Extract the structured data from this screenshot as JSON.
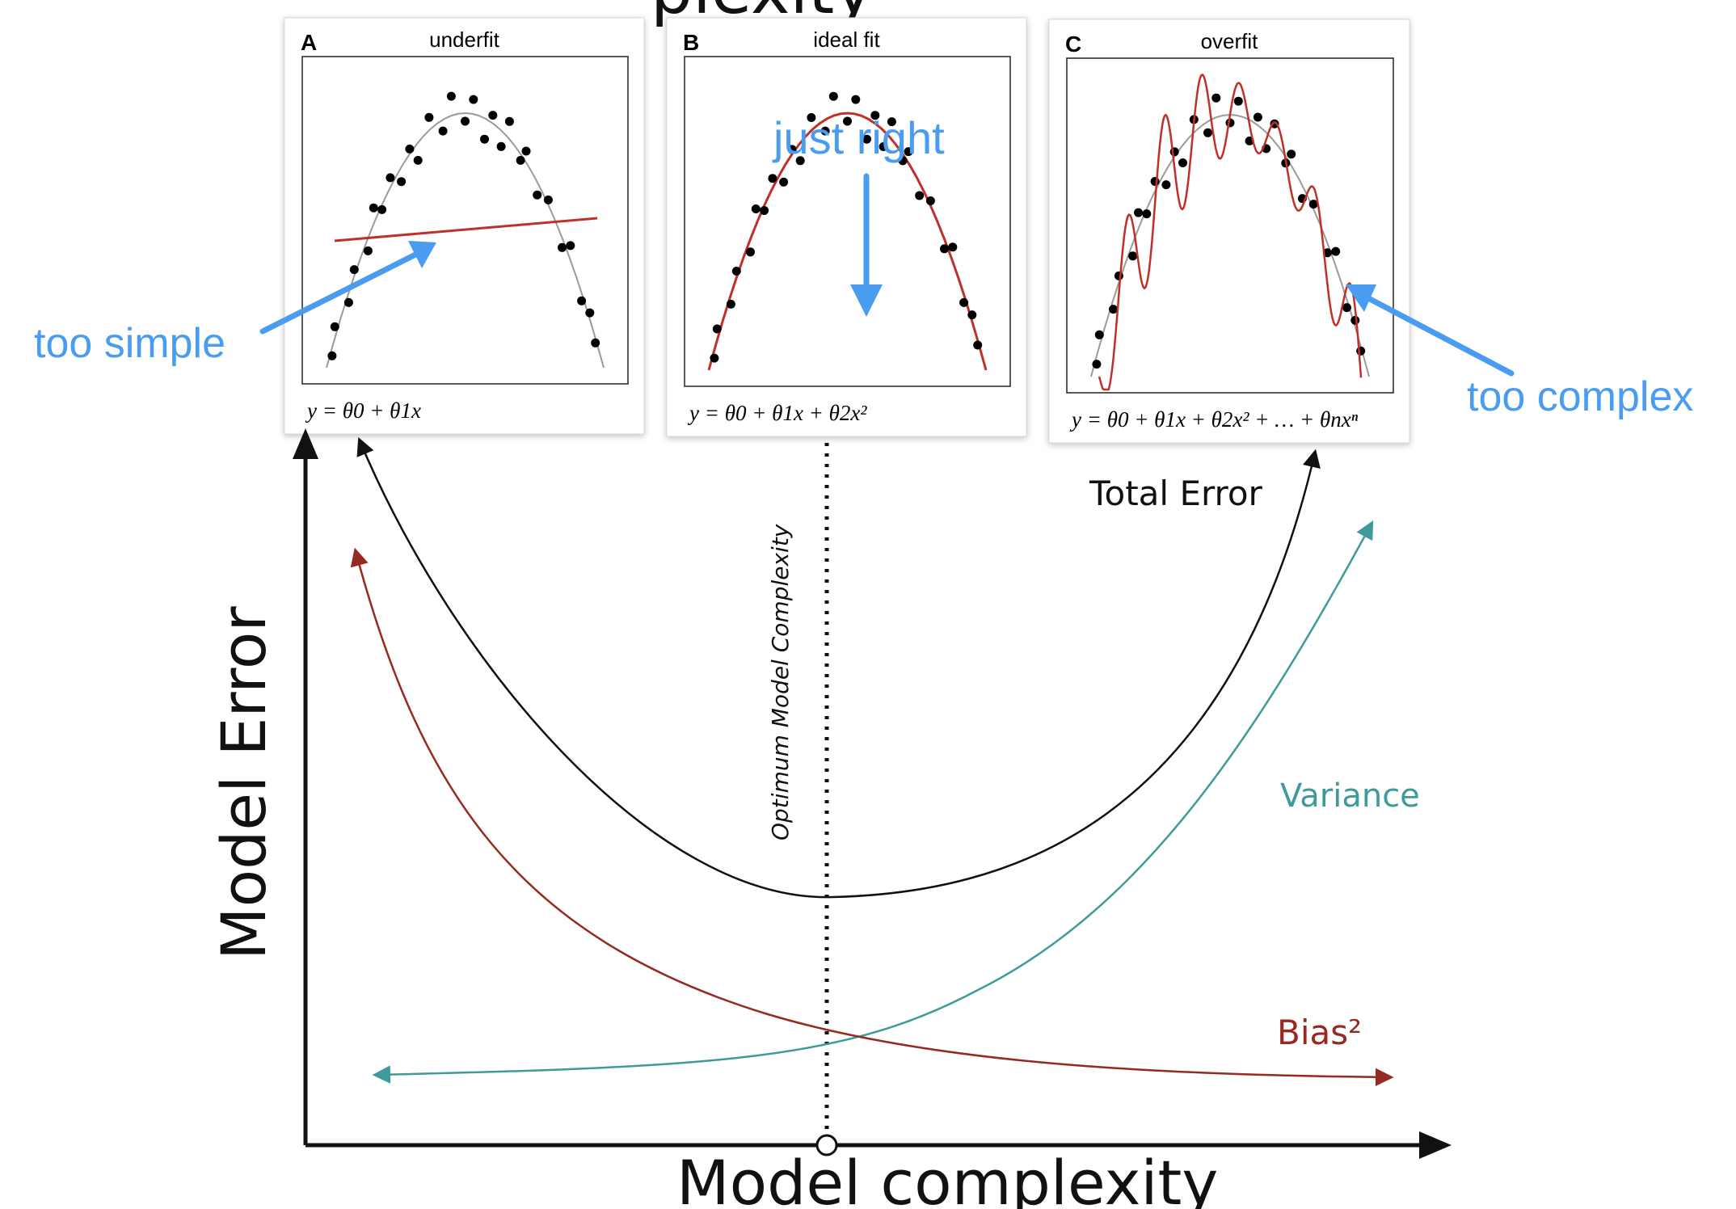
{
  "header_fragment": "plexity",
  "panels": [
    {
      "letter": "A",
      "title": "underfit",
      "formula": "y = θ0 + θ1x"
    },
    {
      "letter": "B",
      "title": "ideal fit",
      "formula": "y = θ0 + θ1x + θ2x²"
    },
    {
      "letter": "C",
      "title": "overfit",
      "formula": "y = θ0 + θ1x + θ2x² + … + θnxⁿ"
    }
  ],
  "annotations": {
    "too_simple": "too simple",
    "just_right": "just right",
    "too_complex": "too complex"
  },
  "axes": {
    "y_label": "Model Error",
    "x_label": "Model complexity"
  },
  "optimum_label": "Optimum Model Complexity",
  "curves": {
    "total_error": "Total Error",
    "variance": "Variance",
    "bias": "Bias²"
  },
  "colors": {
    "annotation": "#4a9cf0",
    "fit_line": "#c0302b",
    "true_curve": "#9a9a9a",
    "total_error": "#111111",
    "variance": "#3f9a9a",
    "bias": "#962a22"
  }
}
